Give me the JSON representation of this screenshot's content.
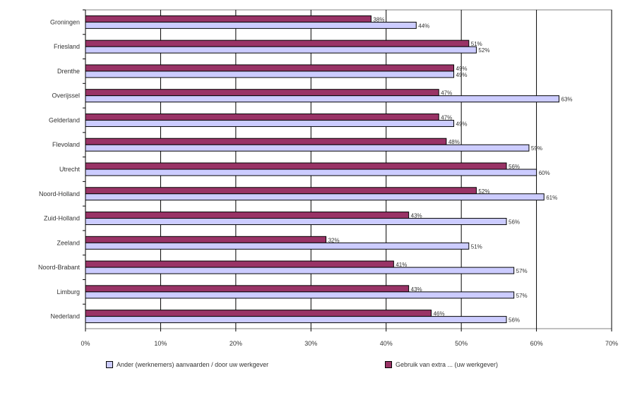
{
  "chart_data": {
    "type": "bar",
    "orientation": "horizontal",
    "categories": [
      "Groningen",
      "Friesland",
      "Drenthe",
      "Overijssel",
      "Gelderland",
      "Flevoland",
      "Utrecht",
      "Noord-Holland",
      "Zuid-Holland",
      "Zeeland",
      "Noord-Brabant",
      "Limburg",
      "Nederland"
    ],
    "series": [
      {
        "name": "Ander (werknemers) aanvaarden / door uw werkgever",
        "color": "#ccccff",
        "values": [
          44,
          52,
          49,
          63,
          49,
          59,
          60,
          61,
          56,
          51,
          57,
          57,
          56
        ]
      },
      {
        "name": "Gebruik van extra ... (uw werkgever)",
        "color": "#993366",
        "values": [
          38,
          51,
          49,
          47,
          47,
          48,
          56,
          52,
          43,
          32,
          41,
          43,
          46
        ]
      }
    ],
    "value_labels": {
      "series_1": [
        "44%",
        "52%",
        "49%",
        "63%",
        "49%",
        "59%",
        "60%",
        "61%",
        "56%",
        "51%",
        "57%",
        "57%",
        "56%"
      ],
      "series_2": [
        "38%",
        "51%",
        "49%",
        "47%",
        "47%",
        "48%",
        "56%",
        "52%",
        "43%",
        "32%",
        "41%",
        "43%",
        "46%"
      ]
    },
    "xticks": [
      "0%",
      "10%",
      "20%",
      "30%",
      "40%",
      "50%",
      "60%",
      "70%"
    ],
    "xlim": [
      0,
      70
    ],
    "grid": "vertical",
    "legend_position": "bottom"
  }
}
